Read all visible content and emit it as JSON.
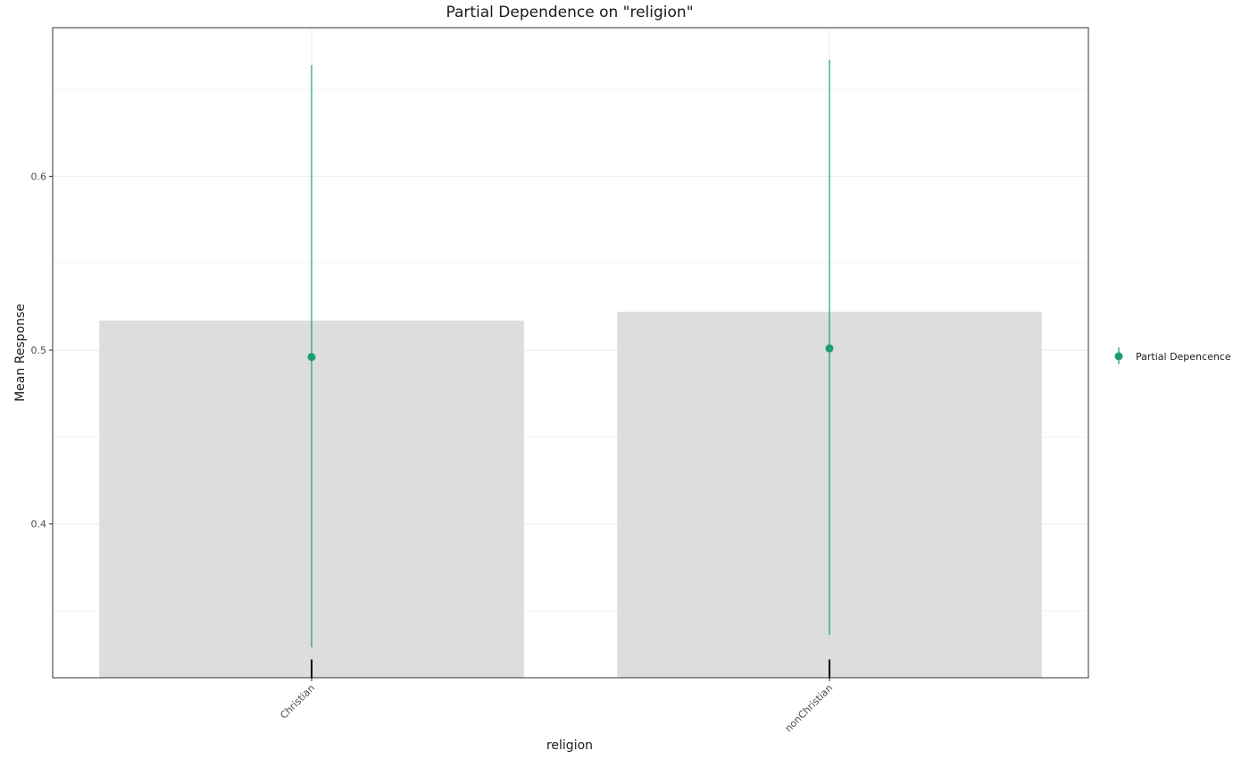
{
  "chart_data": {
    "type": "bar",
    "title": "Partial Dependence on \"religion\"",
    "xlabel": "religion",
    "ylabel": "Mean Response",
    "categories": [
      "Christian",
      "nonChristian"
    ],
    "bar_values": [
      0.517,
      0.522
    ],
    "series": [
      {
        "name": "Partial Depencence",
        "values": [
          0.496,
          0.501
        ],
        "lower": [
          0.329,
          0.336
        ],
        "upper": [
          0.664,
          0.667
        ]
      }
    ],
    "rug": [
      {
        "category": "Christian",
        "from": 0.311,
        "to": 0.322
      },
      {
        "category": "nonChristian",
        "from": 0.311,
        "to": 0.322
      }
    ],
    "ylim": [
      0.3115,
      0.6855
    ],
    "yticks": [
      0.4,
      0.5,
      0.6
    ],
    "ytick_labels": [
      "0.4",
      "0.5",
      "0.6"
    ],
    "grid": true,
    "legend_position": "right",
    "colors": {
      "point": "#1b9e77",
      "bar": "#dddddd",
      "rug": "#000000",
      "grid": "#ebebeb",
      "panel_border": "#333333"
    }
  }
}
